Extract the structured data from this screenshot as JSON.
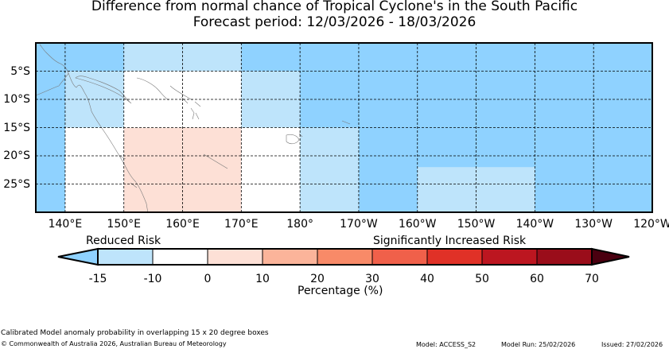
{
  "title": "Difference from normal chance of Tropical Cyclone's in the South Pacific",
  "subtitle": "Forecast period: 12/03/2026 - 18/03/2026",
  "map": {
    "lon_range": [
      135,
      240
    ],
    "lat_range": [
      -30,
      0
    ],
    "lon_labels": [
      "140°E",
      "150°E",
      "160°E",
      "170°E",
      "180°",
      "170°W",
      "160°W",
      "150°W",
      "140°W",
      "130°W",
      "120°W"
    ],
    "lat_labels": [
      "5°S",
      "10°S",
      "15°S",
      "20°S",
      "25°S"
    ],
    "lat_values": [
      -5,
      -10,
      -15,
      -20,
      -25
    ],
    "lon_values": [
      140,
      150,
      160,
      170,
      180,
      190,
      200,
      210,
      220,
      230,
      240
    ],
    "regions": [
      {
        "lon": [
          135,
          150
        ],
        "lat": [
          -30,
          0
        ],
        "value": -20,
        "color": "#8fd2ff"
      },
      {
        "lon": [
          140,
          150
        ],
        "lat": [
          -15,
          -5
        ],
        "value": -15,
        "color": "#bee4fb"
      },
      {
        "lon": [
          140,
          150
        ],
        "lat": [
          -30,
          -15
        ],
        "value": 0,
        "color": "#ffffff"
      },
      {
        "lon": [
          150,
          170
        ],
        "lat": [
          -5,
          0
        ],
        "value": -15,
        "color": "#bee4fb"
      },
      {
        "lon": [
          150,
          170
        ],
        "lat": [
          -15,
          -5
        ],
        "value": 0,
        "color": "#ffffff"
      },
      {
        "lon": [
          150,
          170
        ],
        "lat": [
          -30,
          -15
        ],
        "value": 5,
        "color": "#fde0d6"
      },
      {
        "lon": [
          170,
          240
        ],
        "lat": [
          -5,
          0
        ],
        "value": -20,
        "color": "#8fd2ff"
      },
      {
        "lon": [
          170,
          180
        ],
        "lat": [
          -15,
          -5
        ],
        "value": -15,
        "color": "#bee4fb"
      },
      {
        "lon": [
          170,
          180
        ],
        "lat": [
          -30,
          -15
        ],
        "value": 0,
        "color": "#ffffff"
      },
      {
        "lon": [
          180,
          240
        ],
        "lat": [
          -15,
          -5
        ],
        "value": -20,
        "color": "#8fd2ff"
      },
      {
        "lon": [
          180,
          190
        ],
        "lat": [
          -30,
          -15
        ],
        "value": -15,
        "color": "#bee4fb"
      },
      {
        "lon": [
          190,
          240
        ],
        "lat": [
          -30,
          -15
        ],
        "value": -20,
        "color": "#8fd2ff"
      },
      {
        "lon": [
          200,
          220
        ],
        "lat": [
          -30,
          -22
        ],
        "value": -15,
        "color": "#bee4fb"
      }
    ]
  },
  "colorbar": {
    "left_label": "Reduced Risk",
    "right_label": "Significantly Increased Risk",
    "under_color": "#8fd2ff",
    "over_color": "#4a0010",
    "bins": [
      {
        "from": -15,
        "to": -10,
        "color": "#bee4fb"
      },
      {
        "from": -10,
        "to": 0,
        "color": "#ffffff"
      },
      {
        "from": 0,
        "to": 10,
        "color": "#fde0d6"
      },
      {
        "from": 10,
        "to": 20,
        "color": "#fbb49a"
      },
      {
        "from": 20,
        "to": 30,
        "color": "#f88a68"
      },
      {
        "from": 30,
        "to": 40,
        "color": "#f0604a"
      },
      {
        "from": 40,
        "to": 50,
        "color": "#e03127"
      },
      {
        "from": 50,
        "to": 60,
        "color": "#bc1620"
      },
      {
        "from": 60,
        "to": 70,
        "color": "#9a0d1a"
      }
    ],
    "tick_labels": [
      "-15",
      "-10",
      "0",
      "10",
      "20",
      "30",
      "40",
      "50",
      "60",
      "70"
    ],
    "xlabel": "Percentage (%)"
  },
  "footer": {
    "method": "Calibrated Model anomaly probability in overlapping 15 x 20 degree boxes",
    "copyright": "© Commonwealth of Australia 2026, Australian Bureau of Meteorology",
    "model": "Model: ACCESS_S2",
    "model_run": "Model Run: 25/02/2026",
    "issued": "Issued: 27/02/2026"
  }
}
